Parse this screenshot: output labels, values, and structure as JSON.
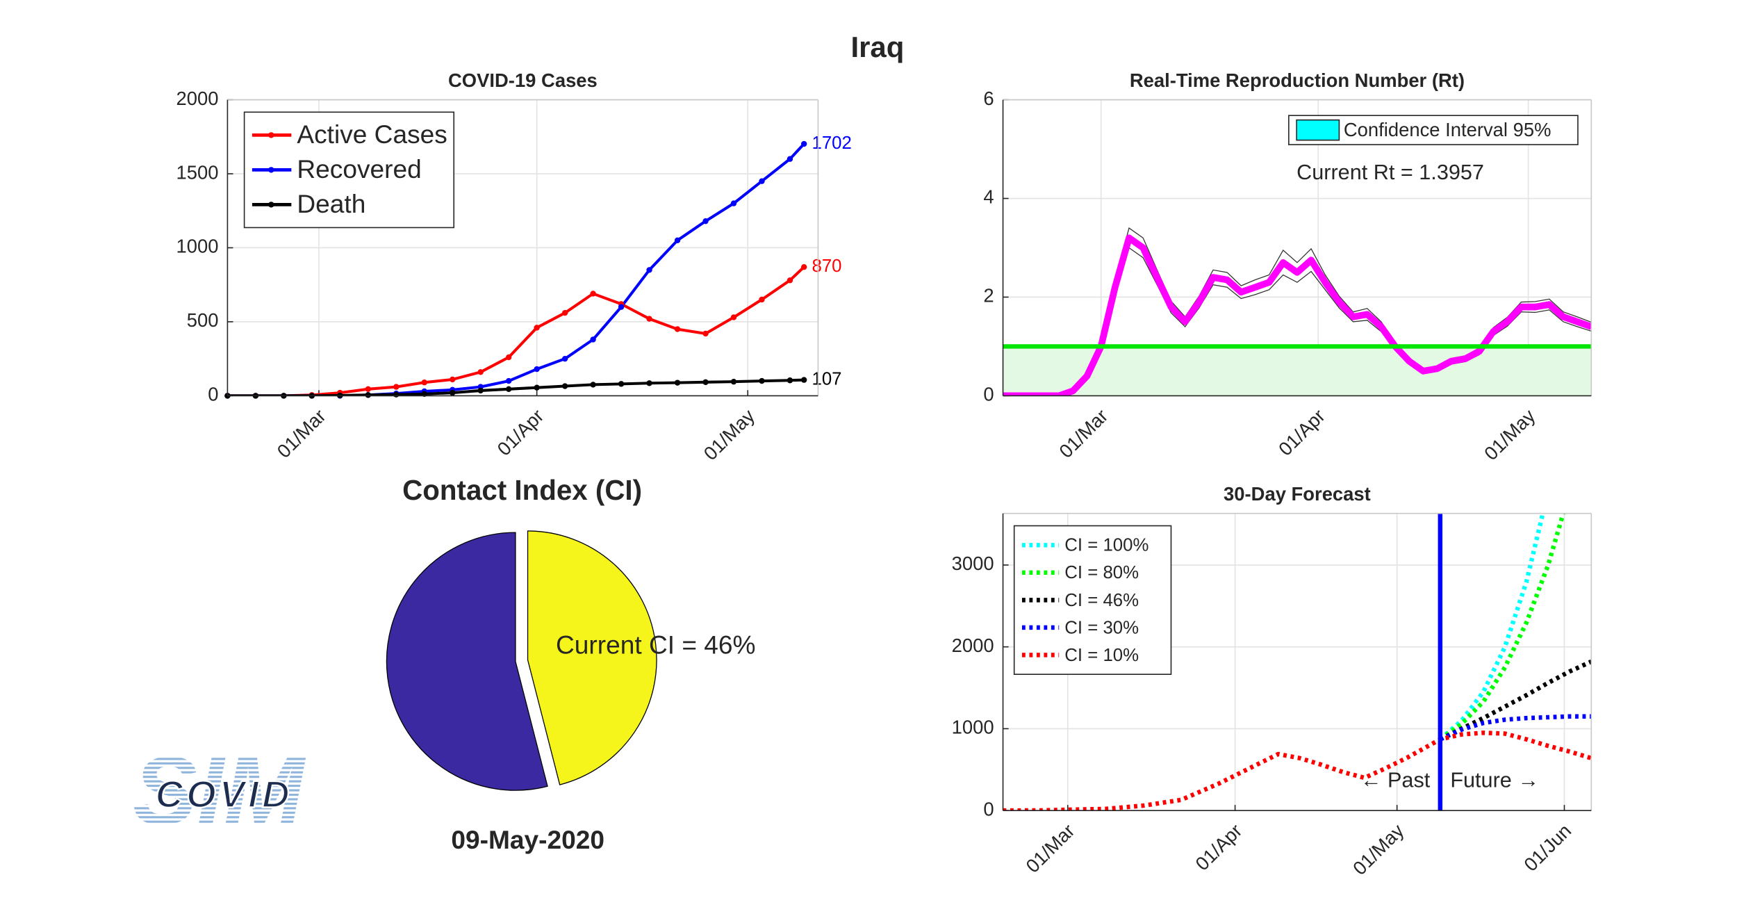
{
  "title": "Iraq",
  "logo_text": "COVID",
  "logo_backdrop": "SIM",
  "chart_data": [
    {
      "type": "line",
      "title": "COVID-19 Cases",
      "legend": "upper left",
      "markers": true,
      "line_style": "solid",
      "end_labels": true,
      "grid": true,
      "x": [
        "17/Feb",
        "21/Feb",
        "25/Feb",
        "29/Feb",
        "04/Mar",
        "08/Mar",
        "12/Mar",
        "16/Mar",
        "20/Mar",
        "24/Mar",
        "28/Mar",
        "01/Apr",
        "05/Apr",
        "09/Apr",
        "13/Apr",
        "17/Apr",
        "21/Apr",
        "25/Apr",
        "29/Apr",
        "03/May",
        "07/May",
        "09/May"
      ],
      "xlim": [
        "17/Feb",
        "11/May"
      ],
      "xticks": [
        "01/Mar",
        "01/Apr",
        "01/May"
      ],
      "ylim": [
        0,
        2000
      ],
      "yticks": [
        0,
        500,
        1000,
        1500,
        2000
      ],
      "series": [
        {
          "name": "Active Cases",
          "color": "#ff0000",
          "values": [
            0,
            0,
            0,
            5,
            20,
            45,
            60,
            90,
            110,
            160,
            260,
            460,
            560,
            690,
            620,
            520,
            450,
            420,
            530,
            650,
            780,
            870
          ]
        },
        {
          "name": "Recovered",
          "color": "#0000ff",
          "values": [
            0,
            0,
            0,
            0,
            0,
            5,
            15,
            30,
            40,
            60,
            100,
            180,
            250,
            380,
            600,
            850,
            1050,
            1180,
            1300,
            1450,
            1600,
            1702
          ]
        },
        {
          "name": "Death",
          "color": "#000000",
          "values": [
            0,
            0,
            0,
            0,
            2,
            5,
            8,
            12,
            20,
            35,
            45,
            55,
            65,
            75,
            80,
            85,
            88,
            92,
            95,
            100,
            104,
            107
          ]
        }
      ]
    },
    {
      "type": "line",
      "title": "Real-Time Reproduction Number (Rt)",
      "legend": "upper right",
      "line_style": "solid",
      "grid": true,
      "x": [
        "16/Feb",
        "20/Feb",
        "24/Feb",
        "26/Feb",
        "28/Feb",
        "01/Mar",
        "03/Mar",
        "05/Mar",
        "07/Mar",
        "09/Mar",
        "11/Mar",
        "13/Mar",
        "15/Mar",
        "17/Mar",
        "19/Mar",
        "21/Mar",
        "23/Mar",
        "25/Mar",
        "27/Mar",
        "29/Mar",
        "31/Mar",
        "02/Apr",
        "04/Apr",
        "06/Apr",
        "08/Apr",
        "10/Apr",
        "12/Apr",
        "14/Apr",
        "16/Apr",
        "18/Apr",
        "20/Apr",
        "22/Apr",
        "24/Apr",
        "26/Apr",
        "28/Apr",
        "30/Apr",
        "02/May",
        "04/May",
        "06/May",
        "08/May",
        "10/May"
      ],
      "xlim": [
        "16/Feb",
        "10/May"
      ],
      "xticks": [
        "01/Mar",
        "01/Apr",
        "01/May"
      ],
      "ylim": [
        0,
        6
      ],
      "yticks": [
        0,
        2,
        4,
        6
      ],
      "series": [
        {
          "color": "#ff00ff",
          "values": [
            0,
            0,
            0,
            0.1,
            0.4,
            1.0,
            2.2,
            3.2,
            3.0,
            2.4,
            1.8,
            1.5,
            1.9,
            2.4,
            2.35,
            2.1,
            2.2,
            2.3,
            2.7,
            2.5,
            2.75,
            2.3,
            1.9,
            1.6,
            1.65,
            1.4,
            1.0,
            0.7,
            0.5,
            0.55,
            0.7,
            0.75,
            0.9,
            1.3,
            1.5,
            1.8,
            1.8,
            1.85,
            1.6,
            1.5,
            1.4
          ]
        }
      ],
      "ci_label": "Confidence Interval 95%",
      "ci_color": "#00ffff",
      "ci_upper": [
        0,
        0,
        0,
        0.1,
        0.42,
        1.05,
        2.35,
        3.4,
        3.2,
        2.55,
        1.92,
        1.6,
        2.02,
        2.55,
        2.5,
        2.23,
        2.35,
        2.45,
        2.95,
        2.7,
        2.98,
        2.45,
        2.02,
        1.7,
        1.77,
        1.5,
        1.08,
        0.76,
        0.54,
        0.6,
        0.76,
        0.81,
        0.97,
        1.38,
        1.59,
        1.9,
        1.91,
        1.96,
        1.7,
        1.6,
        1.49
      ],
      "ci_lower": [
        0,
        0,
        0,
        0.1,
        0.38,
        0.95,
        2.05,
        3.0,
        2.8,
        2.25,
        1.68,
        1.4,
        1.78,
        2.25,
        2.2,
        1.97,
        2.05,
        2.15,
        2.45,
        2.3,
        2.52,
        2.15,
        1.78,
        1.5,
        1.53,
        1.3,
        0.92,
        0.64,
        0.46,
        0.5,
        0.64,
        0.69,
        0.83,
        1.22,
        1.41,
        1.7,
        1.69,
        1.74,
        1.5,
        1.4,
        1.31
      ],
      "threshold": 1,
      "threshold_color": "#00e600",
      "annotation": "Current Rt = 1.3957"
    },
    {
      "type": "pie",
      "title": "Contact Index (CI)",
      "values": [
        46,
        54
      ],
      "colors": [
        "#f5f51b",
        "#3b29a2"
      ],
      "explode": [
        true,
        false
      ],
      "annotation": "Current CI = 46%",
      "caption": "09-May-2020"
    },
    {
      "type": "line",
      "title": "30-Day Forecast",
      "legend": "upper left",
      "line_style": "dotted",
      "grid": true,
      "x": [
        "18/Feb",
        "25/Feb",
        "01/Mar",
        "08/Mar",
        "15/Mar",
        "22/Mar",
        "29/Mar",
        "05/Apr",
        "09/Apr",
        "13/Apr",
        "17/Apr",
        "21/Apr",
        "25/Apr",
        "29/Apr",
        "03/May",
        "09/May",
        "13/May",
        "17/May",
        "21/May",
        "25/May",
        "29/May",
        "02/Jun",
        "06/Jun"
      ],
      "xlim": [
        "18/Feb",
        "06/Jun"
      ],
      "xticks": [
        "01/Mar",
        "01/Apr",
        "01/May",
        "01/Jun"
      ],
      "ylim": [
        0,
        3630
      ],
      "yticks": [
        0,
        1000,
        2000,
        3000
      ],
      "series": [
        {
          "name": "CI = 100%",
          "color": "#00ffff",
          "values": [
            null,
            null,
            null,
            null,
            null,
            null,
            null,
            null,
            null,
            null,
            null,
            null,
            null,
            null,
            null,
            870,
            1100,
            1450,
            2000,
            2800,
            3900,
            null,
            null
          ]
        },
        {
          "name": "CI = 80%",
          "color": "#00ff00",
          "values": [
            null,
            null,
            null,
            null,
            null,
            null,
            null,
            null,
            null,
            null,
            null,
            null,
            null,
            null,
            null,
            870,
            1060,
            1330,
            1750,
            2300,
            3000,
            3900,
            null
          ]
        },
        {
          "name": "CI = 46%",
          "color": "#000000",
          "values": [
            null,
            null,
            null,
            null,
            null,
            null,
            null,
            null,
            null,
            null,
            null,
            null,
            null,
            null,
            null,
            870,
            1000,
            1130,
            1270,
            1410,
            1560,
            1700,
            1820
          ]
        },
        {
          "name": "CI = 30%",
          "color": "#0000ff",
          "values": [
            null,
            null,
            null,
            null,
            null,
            null,
            null,
            null,
            null,
            null,
            null,
            null,
            null,
            null,
            null,
            870,
            990,
            1070,
            1110,
            1130,
            1140,
            1150,
            1150
          ]
        },
        {
          "name": "CI = 10%",
          "color": "#ff0000",
          "values": [
            0,
            2,
            10,
            20,
            60,
            130,
            330,
            560,
            690,
            640,
            560,
            470,
            400,
            520,
            650,
            870,
            930,
            950,
            940,
            870,
            790,
            720,
            640
          ]
        }
      ],
      "divider": "09/May",
      "divider_color": "#0000ff",
      "past_label": "← Past",
      "future_label": "Future →"
    }
  ]
}
